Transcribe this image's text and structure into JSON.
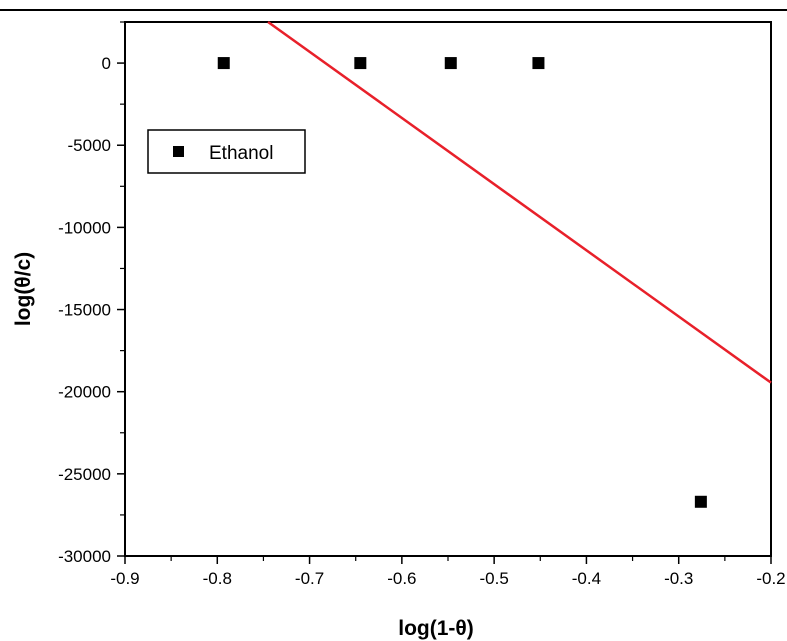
{
  "chart_data": {
    "type": "scatter",
    "title": "",
    "xlabel": "log(1-θ)",
    "ylabel": "log(θ/c)",
    "xlim": [
      -0.9,
      -0.2
    ],
    "ylim": [
      -30000,
      2500
    ],
    "x_ticks": [
      -0.9,
      -0.8,
      -0.7,
      -0.6,
      -0.5,
      -0.4,
      -0.3,
      -0.2
    ],
    "x_tick_labels": [
      "-0.9",
      "-0.8",
      "-0.7",
      "-0.6",
      "-0.5",
      "-0.4",
      "-0.3",
      "-0.2"
    ],
    "y_ticks": [
      0,
      -5000,
      -10000,
      -15000,
      -20000,
      -25000,
      -30000
    ],
    "y_tick_labels": [
      "0",
      "-5000",
      "-10000",
      "-15000",
      "-20000",
      "-25000",
      "-30000"
    ],
    "grid": false,
    "legend_position": "upper-left",
    "series": [
      {
        "name": "Ethanol",
        "marker": "square",
        "color": "#000000",
        "x": [
          -0.793,
          -0.645,
          -0.547,
          -0.452,
          -0.276
        ],
        "y": [
          0,
          0,
          0,
          0,
          -26700
        ]
      }
    ],
    "fit_line": {
      "color": "#e8202a",
      "x": [
        -0.745,
        -0.2
      ],
      "y": [
        2500,
        -19450
      ]
    }
  }
}
